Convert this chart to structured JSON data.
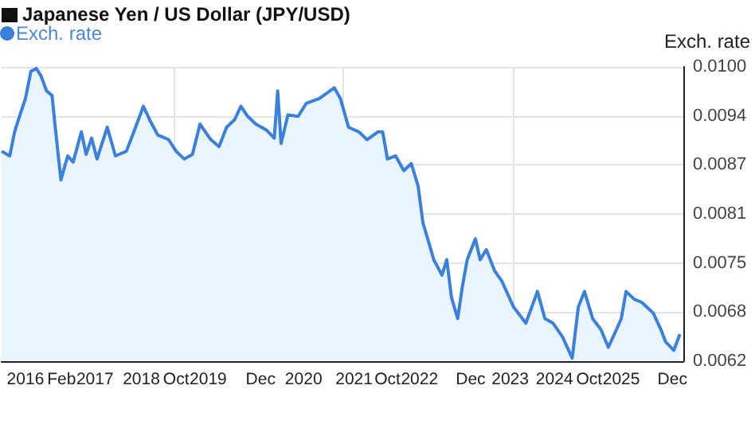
{
  "chart_data": {
    "type": "area",
    "title": "Japanese Yen / US Dollar (JPY/USD)",
    "ylabel": "Exch. rate",
    "xlim": [
      2016,
      2026
    ],
    "xticks": [
      {
        "value": 2016.35,
        "label": "2016"
      },
      {
        "value": 2016.88,
        "label": "Feb"
      },
      {
        "value": 2017.37,
        "label": "2017"
      },
      {
        "value": 2018.05,
        "label": "2018"
      },
      {
        "value": 2018.52,
        "label": null
      },
      {
        "value": 2018.56,
        "label": "Oct"
      },
      {
        "value": 2019.03,
        "label": "2019"
      },
      {
        "value": 2019.8,
        "label": "Dec"
      },
      {
        "value": 2020.43,
        "label": "2020"
      },
      {
        "value": 2021.01,
        "label": null
      },
      {
        "value": 2021.17,
        "label": "2021"
      },
      {
        "value": 2021.66,
        "label": "Oct"
      },
      {
        "value": 2022.13,
        "label": "2022"
      },
      {
        "value": 2022.88,
        "label": "Dec"
      },
      {
        "value": 2023.46,
        "label": "2023"
      },
      {
        "value": 2023.51,
        "label": null
      },
      {
        "value": 2024.11,
        "label": "2024"
      },
      {
        "value": 2024.62,
        "label": "Oct"
      },
      {
        "value": 2025.09,
        "label": "2025"
      },
      {
        "value": 2025.84,
        "label": "Dec"
      }
    ],
    "ylim": [
      0.0062,
      0.01
    ],
    "yticks": [
      0.0062,
      {
        "value": 0.006833,
        "label": "0.0068"
      },
      {
        "value": 0.007467,
        "label": "0.0075"
      },
      0.0081,
      {
        "value": 0.008733,
        "label": "0.0087"
      },
      {
        "value": 0.009367,
        "label": "0.0094"
      },
      {
        "value": 0.01,
        "label": "0.0100"
      }
    ],
    "grid": true,
    "legend": "top left",
    "marker": "none",
    "series": [
      {
        "name": "Exch. rate",
        "color": "#3a80dd",
        "x": [
          2016.0,
          2016.12,
          2016.19,
          2016.27,
          2016.35,
          2016.43,
          2016.51,
          2016.58,
          2016.66,
          2016.74,
          2016.78,
          2016.82,
          2016.87,
          2016.97,
          2017.05,
          2017.17,
          2017.24,
          2017.32,
          2017.4,
          2017.55,
          2017.67,
          2017.83,
          2017.94,
          2018.08,
          2018.17,
          2018.29,
          2018.45,
          2018.56,
          2018.68,
          2018.8,
          2018.91,
          2019.07,
          2019.19,
          2019.3,
          2019.42,
          2019.51,
          2019.61,
          2019.73,
          2019.89,
          2020.0,
          2020.05,
          2020.1,
          2020.2,
          2020.35,
          2020.47,
          2020.66,
          2020.88,
          2020.97,
          2021.09,
          2021.24,
          2021.36,
          2021.52,
          2021.59,
          2021.66,
          2021.78,
          2021.9,
          2022.01,
          2022.11,
          2022.18,
          2022.25,
          2022.34,
          2022.46,
          2022.53,
          2022.6,
          2022.69,
          2022.76,
          2022.83,
          2022.95,
          2023.02,
          2023.11,
          2023.23,
          2023.34,
          2023.51,
          2023.69,
          2023.86,
          2023.97,
          2024.09,
          2024.23,
          2024.37,
          2024.46,
          2024.55,
          2024.67,
          2024.79,
          2024.9,
          2025.02,
          2025.09,
          2025.16,
          2025.28,
          2025.39,
          2025.56,
          2025.67,
          2025.74,
          2025.86,
          2025.95
        ],
        "values": [
          0.00891,
          0.00885,
          0.00916,
          0.00938,
          0.00959,
          0.00994,
          0.00998,
          0.00988,
          0.00969,
          0.00963,
          0.00928,
          0.00895,
          0.00854,
          0.00885,
          0.00877,
          0.00916,
          0.00887,
          0.00908,
          0.00881,
          0.00922,
          0.00885,
          0.00891,
          0.00916,
          0.00949,
          0.00932,
          0.00912,
          0.00906,
          0.00891,
          0.00881,
          0.00887,
          0.00926,
          0.00906,
          0.00897,
          0.00922,
          0.00932,
          0.00949,
          0.00936,
          0.00926,
          0.00918,
          0.00908,
          0.00969,
          0.00901,
          0.00938,
          0.00936,
          0.00953,
          0.00959,
          0.00973,
          0.00959,
          0.00922,
          0.00916,
          0.00906,
          0.00916,
          0.00916,
          0.00881,
          0.00885,
          0.00866,
          0.00875,
          0.00846,
          0.00799,
          0.00778,
          0.00751,
          0.00731,
          0.00751,
          0.00702,
          0.00675,
          0.00717,
          0.00751,
          0.00778,
          0.00751,
          0.00764,
          0.00737,
          0.00723,
          0.0069,
          0.00669,
          0.0071,
          0.00675,
          0.00669,
          0.00651,
          0.00624,
          0.0069,
          0.0071,
          0.00675,
          0.00661,
          0.00638,
          0.00661,
          0.00675,
          0.0071,
          0.007,
          0.00696,
          0.00682,
          0.00661,
          0.00645,
          0.00634,
          0.00655
        ]
      }
    ]
  }
}
